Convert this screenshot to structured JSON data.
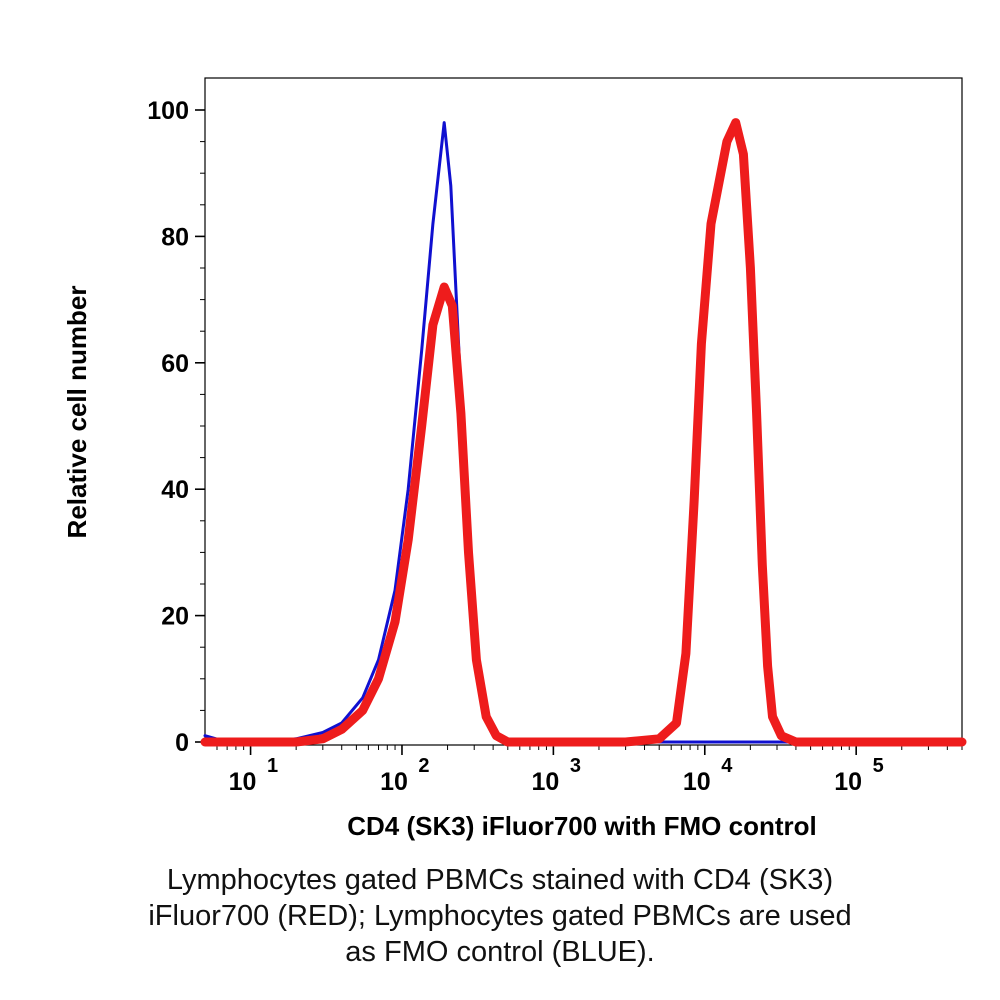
{
  "chart_data": {
    "type": "line",
    "title": "",
    "xlabel": "CD4 (SK3) iFluor700 with FMO control",
    "ylabel": "Relative cell number",
    "x_scale": "log",
    "xlim": [
      5,
      500000
    ],
    "ylim": [
      0,
      100
    ],
    "y_ticks": [
      0,
      20,
      40,
      60,
      80,
      100
    ],
    "y_tick_labels": [
      "0",
      "20",
      "40",
      "60",
      "80",
      "100"
    ],
    "x_ticks": [
      {
        "value": 10,
        "base": "10",
        "exp": "1"
      },
      {
        "value": 100,
        "base": "10",
        "exp": "2"
      },
      {
        "value": 1000,
        "base": "10",
        "exp": "3"
      },
      {
        "value": 10000,
        "base": "10",
        "exp": "4"
      },
      {
        "value": 100000,
        "base": "10",
        "exp": "5"
      }
    ],
    "legend": "none",
    "grid": false,
    "series": [
      {
        "color": "#1010d0",
        "points": [
          [
            5,
            1
          ],
          [
            7,
            0
          ],
          [
            12,
            0
          ],
          [
            20,
            0.5
          ],
          [
            30,
            1.5
          ],
          [
            40,
            3
          ],
          [
            55,
            7
          ],
          [
            70,
            13
          ],
          [
            90,
            24
          ],
          [
            110,
            40
          ],
          [
            135,
            62
          ],
          [
            160,
            82
          ],
          [
            190,
            98
          ],
          [
            210,
            88
          ],
          [
            240,
            60
          ],
          [
            270,
            32
          ],
          [
            300,
            14
          ],
          [
            350,
            4
          ],
          [
            400,
            1
          ],
          [
            500,
            0
          ],
          [
            500000,
            0
          ]
        ]
      },
      {
        "color": "#ee1c1c",
        "points": [
          [
            5,
            0
          ],
          [
            7,
            0
          ],
          [
            12,
            0
          ],
          [
            20,
            0
          ],
          [
            30,
            0.5
          ],
          [
            40,
            2
          ],
          [
            55,
            5
          ],
          [
            70,
            10
          ],
          [
            90,
            19
          ],
          [
            110,
            32
          ],
          [
            135,
            50
          ],
          [
            160,
            66
          ],
          [
            190,
            72
          ],
          [
            215,
            69
          ],
          [
            245,
            52
          ],
          [
            275,
            30
          ],
          [
            310,
            13
          ],
          [
            360,
            4
          ],
          [
            420,
            1
          ],
          [
            500,
            0
          ],
          [
            3000,
            0
          ],
          [
            5000,
            0.5
          ],
          [
            6500,
            3
          ],
          [
            7500,
            14
          ],
          [
            8500,
            38
          ],
          [
            9500,
            63
          ],
          [
            11000,
            82
          ],
          [
            14000,
            95
          ],
          [
            16000,
            98
          ],
          [
            18000,
            93
          ],
          [
            20000,
            75
          ],
          [
            22000,
            52
          ],
          [
            24000,
            28
          ],
          [
            26000,
            12
          ],
          [
            28000,
            4
          ],
          [
            32000,
            1
          ],
          [
            40000,
            0
          ],
          [
            500000,
            0
          ]
        ]
      }
    ]
  },
  "caption": {
    "line1": "Lymphocytes gated PBMCs stained with CD4 (SK3)",
    "line2": "iFluor700 (RED); Lymphocytes gated PBMCs are used",
    "line3": "as FMO control (BLUE)."
  }
}
